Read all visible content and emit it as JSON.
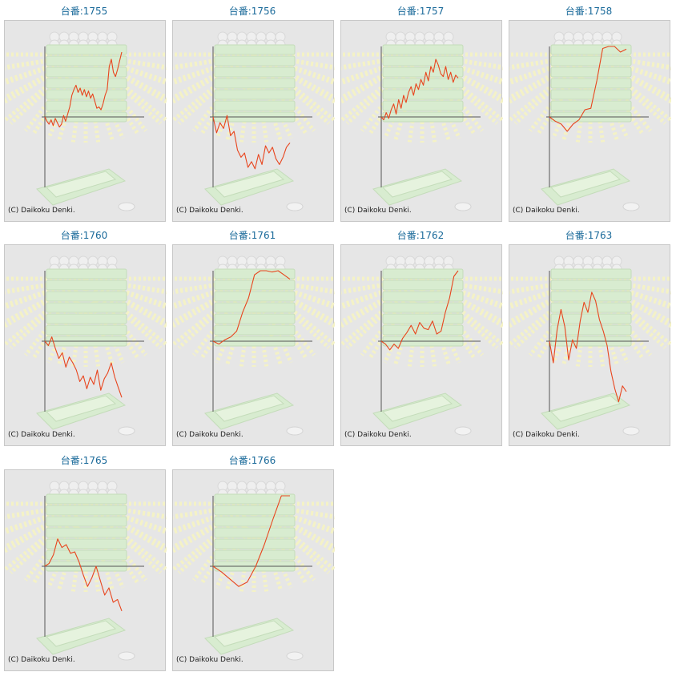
{
  "copyright": "(C) Daikoku Denki.",
  "colors": {
    "line": "#e8451e",
    "axis": "#555555",
    "title": "#1a6a9a",
    "background": "#e6e6e6"
  },
  "chart_data": [
    {
      "type": "line",
      "title": "台番:1755",
      "values": [
        0.0,
        -0.06,
        -0.1,
        -0.04,
        -0.12,
        -0.02,
        -0.08,
        -0.14,
        -0.1,
        0.02,
        -0.06,
        0.04,
        0.14,
        0.3,
        0.38,
        0.44,
        0.34,
        0.4,
        0.3,
        0.38,
        0.28,
        0.36,
        0.26,
        0.32,
        0.22,
        0.12,
        0.14,
        0.1,
        0.18,
        0.3,
        0.38,
        0.7,
        0.8,
        0.62,
        0.56,
        0.66,
        0.78,
        0.9
      ]
    },
    {
      "type": "line",
      "title": "台番:1756",
      "values": [
        0.0,
        -0.22,
        -0.08,
        -0.16,
        0.02,
        -0.26,
        -0.2,
        -0.46,
        -0.56,
        -0.5,
        -0.7,
        -0.62,
        -0.72,
        -0.52,
        -0.66,
        -0.4,
        -0.5,
        -0.42,
        -0.58,
        -0.66,
        -0.56,
        -0.42,
        -0.36
      ]
    },
    {
      "type": "line",
      "title": "台番:1757",
      "values": [
        0.0,
        -0.04,
        0.06,
        -0.02,
        0.1,
        0.18,
        0.04,
        0.24,
        0.12,
        0.3,
        0.2,
        0.34,
        0.42,
        0.3,
        0.46,
        0.38,
        0.52,
        0.44,
        0.62,
        0.5,
        0.7,
        0.62,
        0.8,
        0.72,
        0.6,
        0.56,
        0.7,
        0.52,
        0.62,
        0.48,
        0.58,
        0.54
      ]
    },
    {
      "type": "line",
      "title": "台番:1758",
      "values": [
        0.0,
        -0.06,
        -0.1,
        -0.2,
        -0.1,
        -0.04,
        0.1,
        0.12,
        0.5,
        0.95,
        1.05,
        1.0,
        0.9,
        0.94
      ]
    },
    {
      "type": "line",
      "title": "台番:1760",
      "values": [
        0.0,
        -0.06,
        0.06,
        -0.1,
        -0.24,
        -0.16,
        -0.36,
        -0.22,
        -0.3,
        -0.4,
        -0.56,
        -0.48,
        -0.66,
        -0.5,
        -0.6,
        -0.4,
        -0.68,
        -0.52,
        -0.44,
        -0.3,
        -0.5,
        -0.64,
        -0.78
      ]
    },
    {
      "type": "line",
      "title": "台番:1761",
      "values": [
        0.0,
        -0.04,
        0.02,
        0.06,
        0.14,
        0.4,
        0.6,
        0.92,
        1.02,
        1.0,
        0.96,
        0.98,
        0.92,
        0.86
      ]
    },
    {
      "type": "line",
      "title": "台番:1762",
      "values": [
        0.0,
        -0.04,
        -0.12,
        -0.04,
        -0.1,
        0.04,
        0.12,
        0.22,
        0.1,
        0.26,
        0.18,
        0.16,
        0.28,
        0.1,
        0.14,
        0.4,
        0.6,
        0.9,
        1.0
      ]
    },
    {
      "type": "line",
      "title": "台番:1763",
      "values": [
        0.0,
        -0.3,
        0.16,
        0.44,
        0.2,
        -0.26,
        0.02,
        -0.1,
        0.28,
        0.54,
        0.4,
        0.68,
        0.56,
        0.3,
        0.14,
        -0.06,
        -0.42,
        -0.66,
        -0.84,
        -0.62,
        -0.7
      ]
    },
    {
      "type": "line",
      "title": "台番:1765",
      "values": [
        0.0,
        0.04,
        0.16,
        0.38,
        0.26,
        0.3,
        0.18,
        0.2,
        0.06,
        -0.12,
        -0.28,
        -0.16,
        0.0,
        -0.2,
        -0.4,
        -0.3,
        -0.5,
        -0.46,
        -0.62
      ]
    },
    {
      "type": "line",
      "title": "台番:1766",
      "values": [
        0.0,
        -0.08,
        -0.18,
        -0.28,
        -0.22,
        0.0,
        0.3,
        0.65,
        1.0,
        1.04
      ]
    }
  ]
}
